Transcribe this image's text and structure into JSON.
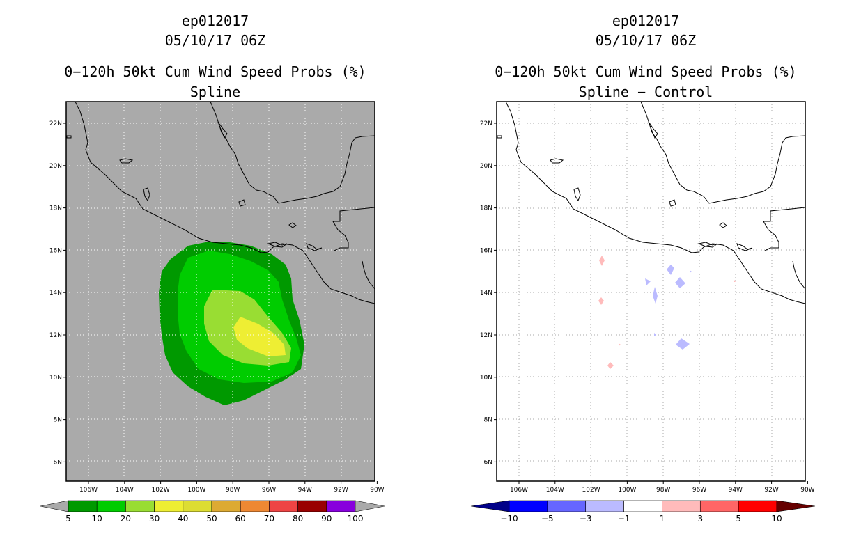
{
  "left": {
    "title_line1": "ep012017",
    "title_line2": "05/10/17 06Z",
    "title_line3": "0−120h 50kt Cum Wind Speed Probs (%)",
    "title_line4": "Spline",
    "colorbar": {
      "labels": [
        "5",
        "10",
        "20",
        "30",
        "40",
        "50",
        "60",
        "70",
        "80",
        "90",
        "100"
      ],
      "colors": [
        "#009900",
        "#00cc00",
        "#99dd33",
        "#eeee33",
        "#dddd33",
        "#ddaa33",
        "#ee8833",
        "#ee4444",
        "#990000",
        "#8800dd"
      ],
      "end_color": "#aaaaaa"
    },
    "background_color": "#aaaaaa"
  },
  "right": {
    "title_line1": "ep012017",
    "title_line2": "05/10/17 06Z",
    "title_line3": "0−120h 50kt Cum Wind Speed Probs (%)",
    "title_line4": "Spline − Control",
    "colorbar": {
      "labels": [
        "−10",
        "−5",
        "−3",
        "−1",
        "1",
        "3",
        "5",
        "10"
      ],
      "colors": [
        "#0000cc",
        "#0000ff",
        "#6666ff",
        "#bbbbff",
        "#ffffff",
        "#ffbbbb",
        "#ff6666",
        "#ff0000",
        "#660000"
      ],
      "low_end_color": "#000088"
    },
    "background_color": "#ffffff"
  },
  "map": {
    "lon_labels": [
      "106W",
      "104W",
      "102W",
      "100W",
      "98W",
      "96W",
      "94W",
      "92W",
      "90W"
    ],
    "lat_labels": [
      "22N",
      "20N",
      "18N",
      "16N",
      "14N",
      "12N",
      "10N",
      "8N",
      "6N"
    ],
    "lon_values": [
      -106,
      -104,
      -102,
      -100,
      -98,
      -96,
      -94,
      -92,
      -90
    ],
    "lat_values": [
      22,
      20,
      18,
      16,
      14,
      12,
      10,
      8,
      6
    ]
  }
}
